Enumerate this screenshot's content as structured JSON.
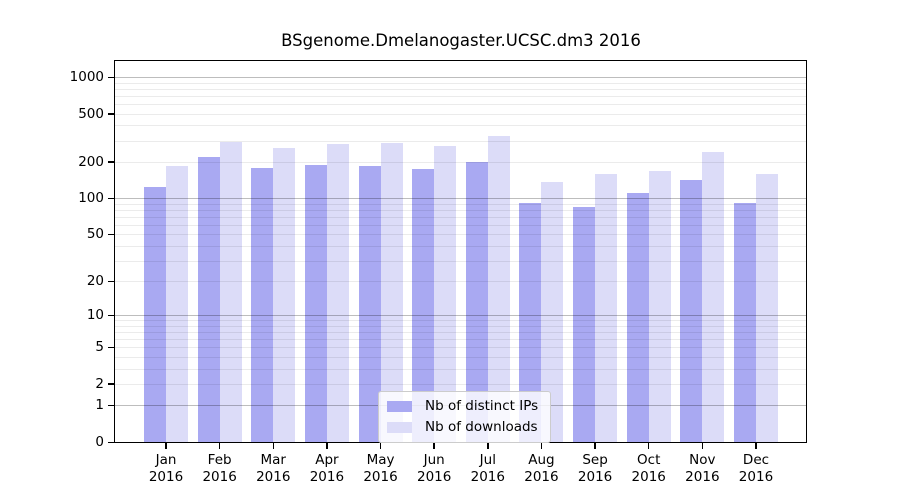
{
  "chart_data": {
    "type": "bar",
    "title": "BSgenome.Dmelanogaster.UCSC.dm3 2016",
    "categories": [
      "Jan",
      "Feb",
      "Mar",
      "Apr",
      "May",
      "Jun",
      "Jul",
      "Aug",
      "Sep",
      "Oct",
      "Nov",
      "Dec"
    ],
    "x_tick_year": "2016",
    "series": [
      {
        "name": "Nb of distinct IPs",
        "color": "#a9a9f2",
        "values": [
          123,
          220,
          178,
          188,
          185,
          174,
          198,
          92,
          84,
          110,
          142,
          92
        ]
      },
      {
        "name": "Nb of downloads",
        "color": "#dcdcf8",
        "values": [
          185,
          292,
          258,
          280,
          289,
          270,
          328,
          137,
          158,
          169,
          242,
          160
        ]
      }
    ],
    "y_scale": "log1p",
    "y_ticks": [
      0,
      1,
      2,
      5,
      10,
      20,
      50,
      100,
      200,
      500,
      1000
    ],
    "ylim": [
      0,
      1400
    ],
    "grid": true,
    "legend_position": "inside-bottom-center"
  },
  "colors": {
    "major_grid": "rgba(0,0,0,0.26)",
    "minor_grid": "rgba(0,0,0,0.08)",
    "spine": "#000000",
    "bar_distinct_ips": "#a9a9f2",
    "bar_downloads": "#dcdcf8",
    "legend_border": "#cccccc",
    "legend_bg": "rgba(255,255,255,0.8)"
  }
}
